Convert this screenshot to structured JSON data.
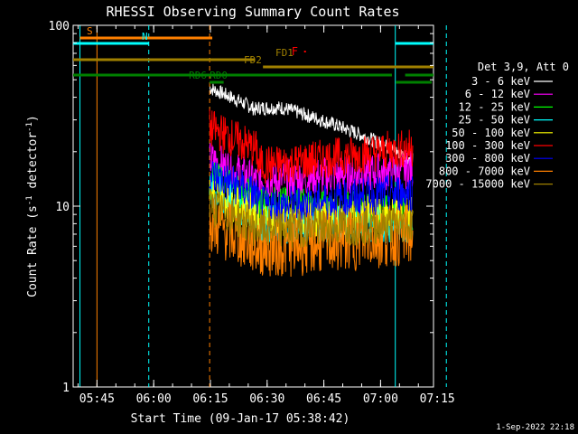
{
  "chart_data": {
    "type": "line",
    "title": "RHESSI Observing Summary Count Rates",
    "xlabel": "Start Time (09-Jan-17 05:38:42)",
    "ylabel": "Count Rate (s",
    "ylabel_sup": "-1",
    "ylabel_tail": " detector",
    "ylabel_sup2": "-1",
    "ylabel_end": ")",
    "y_scale": "log",
    "ylim": [
      1,
      100
    ],
    "xlim_minutes": [
      338.7,
      434.0
    ],
    "y_ticks": [
      {
        "value": 1,
        "label": "1"
      },
      {
        "value": 10,
        "label": "10"
      },
      {
        "value": 100,
        "label": "100"
      }
    ],
    "x_ticks": [
      {
        "minutes": 345,
        "label": "05:45"
      },
      {
        "minutes": 360,
        "label": "06:00"
      },
      {
        "minutes": 375,
        "label": "06:15"
      },
      {
        "minutes": 390,
        "label": "06:30"
      },
      {
        "minutes": 405,
        "label": "06:45"
      },
      {
        "minutes": 420,
        "label": "07:00"
      },
      {
        "minutes": 435,
        "label": "07:15"
      }
    ],
    "legend_header": "Det 3,9, Att 0",
    "legend_placement": "right",
    "series": [
      {
        "name": "3 - 6 keV",
        "color": "#ffffff",
        "level_start": 45,
        "level_drop": 35,
        "level_end": 18
      },
      {
        "name": "6 - 12 keV",
        "color": "#ff00ff",
        "level_start": 18,
        "level_drop": 14,
        "level_end": 16
      },
      {
        "name": "12 - 25 keV",
        "color": "#00ff00",
        "level_start": 14,
        "level_drop": 10,
        "level_end": 9
      },
      {
        "name": "25 - 50 keV",
        "color": "#00ffff",
        "level_start": 12,
        "level_drop": 8,
        "level_end": 8
      },
      {
        "name": "50 - 100 keV",
        "color": "#ffff00",
        "level_start": 12,
        "level_drop": 8.5,
        "level_end": 9
      },
      {
        "name": "100 - 300 keV",
        "color": "#ff0000",
        "level_start": 27,
        "level_drop": 17,
        "level_end": 21
      },
      {
        "name": "300 - 800 keV",
        "color": "#0000ff",
        "level_start": 15,
        "level_drop": 10,
        "level_end": 12
      },
      {
        "name": "800 - 7000 keV",
        "color": "#ff8000",
        "level_start": 8,
        "level_drop": 6,
        "level_end": 7
      },
      {
        "name": "7000 - 15000 keV",
        "color": "#a08000",
        "level_start": 10,
        "level_drop": 7.5,
        "level_end": 8
      }
    ],
    "data_start_minutes": 374.8,
    "data_end_minutes": 428.5,
    "flag_bars": [
      {
        "label": "S",
        "color": "#ff8000",
        "start": 340.5,
        "end": 375.5,
        "level": 1
      },
      {
        "label": "N",
        "color": "#00ffff",
        "start": 338.7,
        "end": 358.7,
        "level": 2
      },
      {
        "label": "",
        "color": "#00ffff",
        "start": 423.9,
        "end": 436.5,
        "level": 2
      },
      {
        "label": "FD1",
        "color": "#a08000",
        "start": 338.7,
        "end": 386.6,
        "level": 3
      },
      {
        "label": "FD2",
        "color": "#a08000",
        "start": 388.9,
        "end": 434.0,
        "level": 4
      },
      {
        "label": "",
        "color": "#008000",
        "start": 338.7,
        "end": 423.0,
        "level": 5
      },
      {
        "label": "",
        "color": "#008000",
        "start": 426.5,
        "end": 434.0,
        "level": 5
      },
      {
        "label": "RD0",
        "color": "#008000",
        "start": 374.8,
        "end": 378.5,
        "level": 6
      },
      {
        "label": "RD6",
        "color": "#008000",
        "start": 376.0,
        "end": 378.3,
        "level": 7
      },
      {
        "label": "",
        "color": "#008000",
        "start": 424.0,
        "end": 433.5,
        "level": 7
      }
    ],
    "flare_marker": {
      "label": "F",
      "color": "#ff0000",
      "minutes": 399.3
    },
    "vertical_lines": [
      {
        "minutes": 345.0,
        "color": "#ff8000",
        "style": "solid"
      },
      {
        "minutes": 374.8,
        "color": "#ff8000",
        "style": "dashed"
      },
      {
        "minutes": 340.5,
        "color": "#00ffff",
        "style": "solid"
      },
      {
        "minutes": 358.7,
        "color": "#00ffff",
        "style": "dashed"
      },
      {
        "minutes": 423.9,
        "color": "#00ffff",
        "style": "solid"
      },
      {
        "minutes": 437.4,
        "color": "#00ffff",
        "style": "dashed"
      }
    ]
  },
  "footer": {
    "timestamp": "1-Sep-2022 22:18"
  }
}
